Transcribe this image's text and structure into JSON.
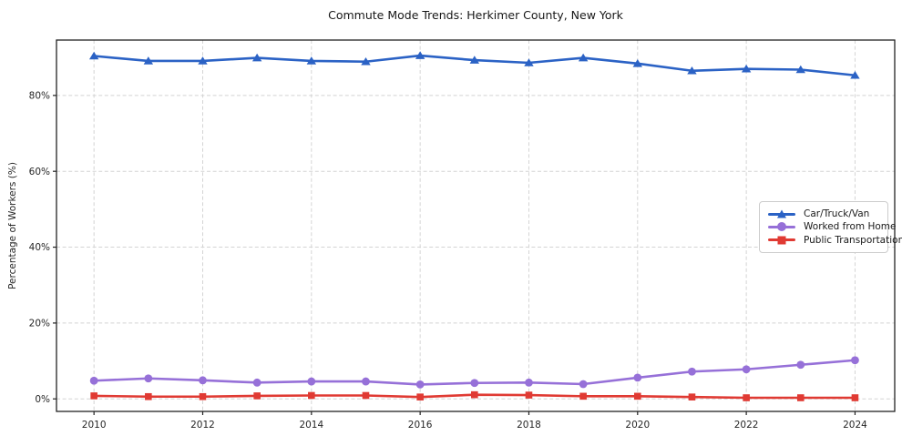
{
  "figure": {
    "title": "Commute Mode Trends: Herkimer County, New York",
    "ylabel": "Percentage of Workers (%)"
  },
  "legend": {
    "entries": [
      {
        "label": "Car/Truck/Van",
        "color": "#2b62c5",
        "marker": "triangle"
      },
      {
        "label": "Worked from Home",
        "color": "#9670d8",
        "marker": "circle"
      },
      {
        "label": "Public Transportation",
        "color": "#e03a33",
        "marker": "square"
      }
    ]
  },
  "chart_data": {
    "type": "line",
    "title": "Commute Mode Trends: Herkimer County, New York",
    "xlabel": "",
    "ylabel": "Percentage of Workers (%)",
    "x": [
      2010,
      2011,
      2012,
      2013,
      2014,
      2015,
      2016,
      2017,
      2018,
      2019,
      2020,
      2021,
      2022,
      2023,
      2024
    ],
    "series": [
      {
        "name": "Car/Truck/Van",
        "color": "#2b62c5",
        "marker": "triangle",
        "values": [
          90.4,
          89.1,
          89.1,
          89.9,
          89.1,
          88.9,
          90.5,
          89.3,
          88.6,
          89.9,
          88.4,
          86.5,
          87.0,
          86.8,
          85.3
        ]
      },
      {
        "name": "Worked from Home",
        "color": "#9670d8",
        "marker": "circle",
        "values": [
          4.8,
          5.4,
          4.9,
          4.3,
          4.6,
          4.6,
          3.8,
          4.2,
          4.3,
          3.9,
          5.6,
          7.2,
          7.8,
          9.0,
          10.2
        ]
      },
      {
        "name": "Public Transportation",
        "color": "#e03a33",
        "marker": "square",
        "values": [
          0.8,
          0.6,
          0.6,
          0.8,
          0.9,
          0.9,
          0.5,
          1.1,
          1.0,
          0.7,
          0.7,
          0.5,
          0.3,
          0.3,
          0.3
        ]
      }
    ],
    "xticks": [
      2010,
      2012,
      2014,
      2016,
      2018,
      2020,
      2022,
      2024
    ],
    "yticks": [
      0,
      20,
      40,
      60,
      80
    ],
    "ytick_suffix": "%",
    "xlim": [
      2009.31,
      2024.73
    ],
    "ylim": [
      -3.3,
      94.6
    ],
    "grid": true,
    "grid_style": "dashed",
    "legend_position": "center right"
  }
}
